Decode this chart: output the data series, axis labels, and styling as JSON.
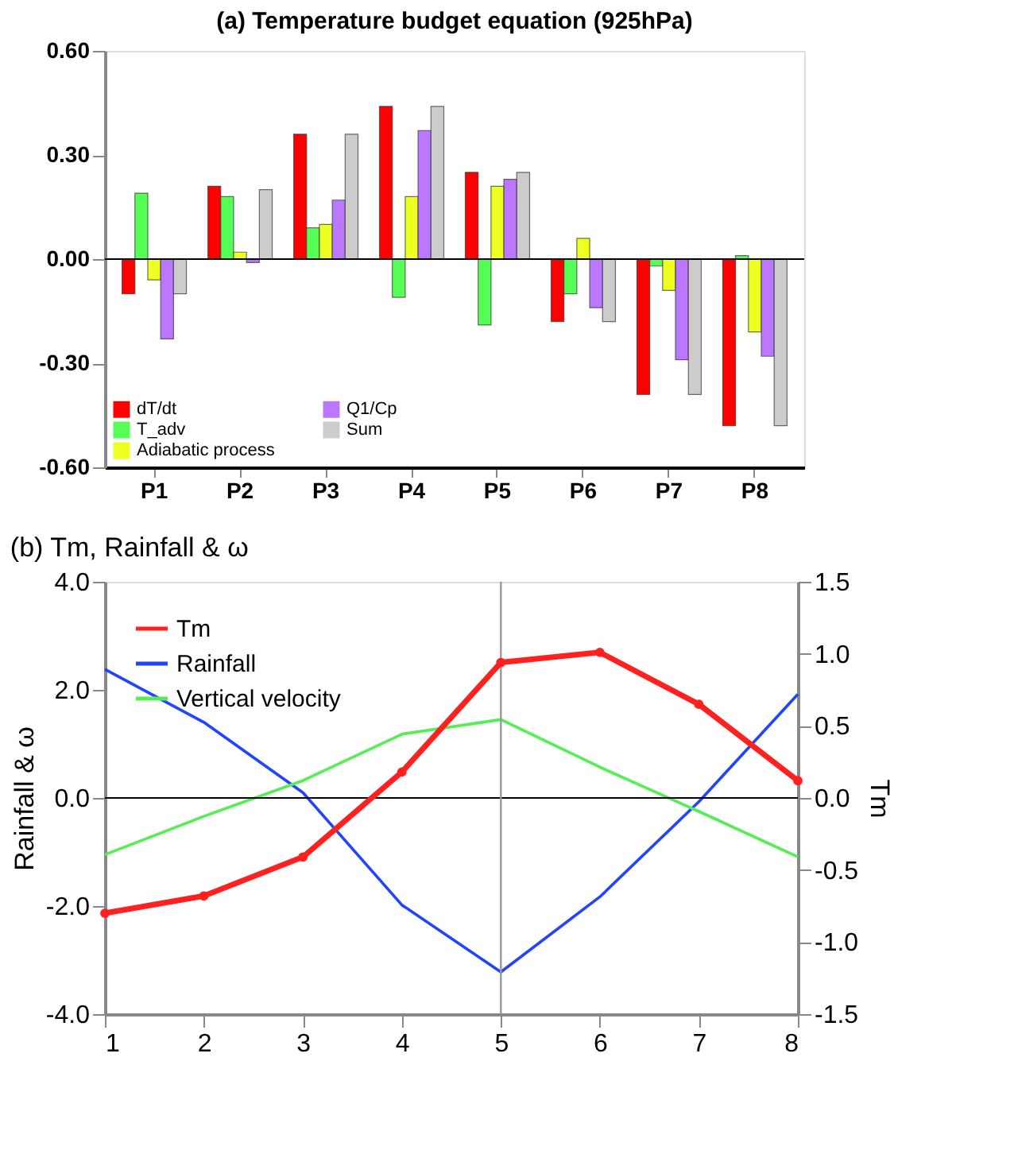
{
  "chart_data": [
    {
      "type": "bar",
      "title": "(a) Temperature budget equation (925hPa)",
      "categories": [
        "P1",
        "P2",
        "P3",
        "P4",
        "P5",
        "P6",
        "P7",
        "P8"
      ],
      "series": [
        {
          "name": "dT/dt",
          "color": "#ff0000",
          "values": [
            -0.1,
            0.21,
            0.36,
            0.44,
            0.25,
            -0.18,
            -0.39,
            -0.48
          ]
        },
        {
          "name": "T_adv",
          "color": "#55ff55",
          "values": [
            0.19,
            0.18,
            0.09,
            -0.11,
            -0.19,
            -0.1,
            -0.02,
            0.01
          ]
        },
        {
          "name": "Adiabatic process",
          "color": "#eeff22",
          "values": [
            -0.06,
            0.02,
            0.1,
            0.18,
            0.21,
            0.06,
            -0.09,
            -0.21
          ]
        },
        {
          "name": "Q1/Cp",
          "color": "#bb77ff",
          "values": [
            -0.23,
            -0.01,
            0.17,
            0.37,
            0.23,
            -0.14,
            -0.29,
            -0.28
          ]
        },
        {
          "name": "Sum",
          "color": "#cccccc",
          "values": [
            -0.1,
            0.2,
            0.36,
            0.44,
            0.25,
            -0.18,
            -0.39,
            -0.48
          ]
        }
      ],
      "ylim": [
        -0.6,
        0.6
      ],
      "yticks": [
        {
          "value": -0.6,
          "label": "-0.60"
        },
        {
          "value": -0.3,
          "label": "-0.30"
        },
        {
          "value": 0,
          "label": "0.00"
        },
        {
          "value": 0.3,
          "label": "0.30"
        },
        {
          "value": 0.6,
          "label": "0.60"
        }
      ],
      "ref_lines": [
        {
          "axis": "y",
          "value": 0,
          "color": "#000000"
        }
      ],
      "grid": false,
      "legend": "bottom left"
    },
    {
      "type": "line",
      "title": "(b) Tm, Rainfall & ω",
      "ylabel": "Rainfall & ω",
      "y2label": "Tm",
      "x": [
        1,
        2,
        3,
        4,
        5,
        6,
        7,
        8
      ],
      "series": [
        {
          "name": "Tm",
          "color": "#ff2020",
          "axis": "y2",
          "marker": "circle",
          "values": [
            -0.8,
            -0.68,
            -0.41,
            0.18,
            0.94,
            1.01,
            0.65,
            0.12
          ]
        },
        {
          "name": "Rainfall",
          "color": "#2244ff",
          "marker": "none",
          "values": [
            2.38,
            1.4,
            0.1,
            -1.98,
            -3.22,
            -1.83,
            -0.07,
            1.92
          ]
        },
        {
          "name": "Vertical velocity",
          "color": "#55ee55",
          "marker": "none",
          "values": [
            -1.05,
            -0.34,
            0.32,
            1.18,
            1.45,
            0.57,
            -0.25,
            -1.09
          ]
        }
      ],
      "xlim": [
        1,
        8
      ],
      "xticks": [
        1,
        2,
        3,
        4,
        5,
        6,
        7,
        8
      ],
      "ylim": [
        -4,
        4
      ],
      "yticks": [
        {
          "value": -4,
          "label": "-4.0"
        },
        {
          "value": -2,
          "label": "-2.0"
        },
        {
          "value": 0,
          "label": "0.0"
        },
        {
          "value": 2,
          "label": "2.0"
        },
        {
          "value": 4,
          "label": "4.0"
        }
      ],
      "y2lim": [
        -1.5,
        1.5
      ],
      "y2ticks": [
        {
          "value": -1.5,
          "label": "-1.5"
        },
        {
          "value": -1,
          "label": "-1.0"
        },
        {
          "value": -0.5,
          "label": "-0.5"
        },
        {
          "value": 0,
          "label": "0.0"
        },
        {
          "value": 0.5,
          "label": "0.5"
        },
        {
          "value": 1,
          "label": "1.0"
        },
        {
          "value": 1.5,
          "label": "1.5"
        }
      ],
      "ref_lines": [
        {
          "axis": "y",
          "value": 0,
          "color": "#000000"
        },
        {
          "axis": "x",
          "value": 5,
          "color": "#999999"
        }
      ],
      "grid": false,
      "legend": "top left",
      "line_style": "solid"
    }
  ]
}
